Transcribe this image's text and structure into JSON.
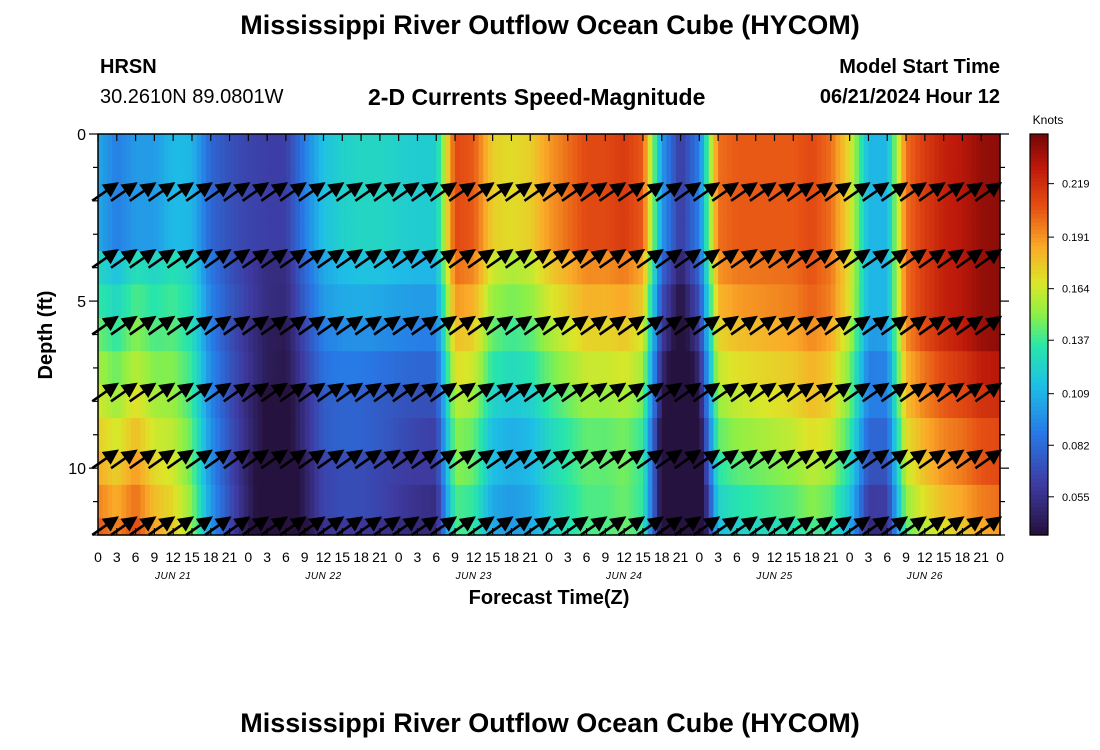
{
  "title": "Mississippi River Outflow Ocean Cube (HYCOM)",
  "footer_title": "Mississippi River Outflow Ocean Cube (HYCOM)",
  "station": {
    "id": "HRSN",
    "coords": "30.2610N  89.0801W"
  },
  "subtitle": "2-D Currents Speed-Magnitude",
  "model_start": {
    "label": "Model Start Time",
    "value": "06/21/2024 Hour 12"
  },
  "chart_data": {
    "type": "heatmap",
    "title": "2-D Currents Speed-Magnitude",
    "xlabel": "Forecast Time(Z)",
    "ylabel": "Depth (ft)",
    "colorbar_label": "Knots",
    "colorbar_ticks": [
      0.219,
      0.191,
      0.164,
      0.137,
      0.109,
      0.082,
      0.055
    ],
    "color_range": [
      0.035,
      0.245
    ],
    "ylim": [
      0,
      12
    ],
    "y_ticks": [
      0,
      5,
      10
    ],
    "x_range_hours": [
      0,
      144
    ],
    "x_tick_labels": [
      "0",
      "3",
      "6",
      "9",
      "12",
      "15",
      "18",
      "21",
      "0",
      "3",
      "6",
      "9",
      "12",
      "15",
      "18",
      "21",
      "0",
      "3",
      "6",
      "9",
      "12",
      "15",
      "18",
      "21",
      "0",
      "3",
      "6",
      "9",
      "12",
      "15",
      "18",
      "21",
      "0",
      "3",
      "6",
      "9",
      "12",
      "15",
      "18",
      "21",
      "0",
      "3",
      "6",
      "9",
      "12",
      "15",
      "18",
      "21",
      "0"
    ],
    "date_labels": [
      "JUN 21",
      "JUN 22",
      "JUN 23",
      "JUN 24",
      "JUN 25",
      "JUN 26"
    ],
    "depth_layers_ft": [
      0.5,
      2,
      3,
      4,
      5,
      6,
      7,
      8,
      9,
      10,
      11,
      12
    ],
    "speed_profile_knots": [
      [
        0,
        0.105
      ],
      [
        3,
        0.09
      ],
      [
        6,
        0.1
      ],
      [
        9,
        0.1
      ],
      [
        12,
        0.112
      ],
      [
        15,
        0.11
      ],
      [
        18,
        0.08
      ],
      [
        21,
        0.07
      ],
      [
        24,
        0.065
      ],
      [
        27,
        0.062
      ],
      [
        30,
        0.062
      ],
      [
        33,
        0.09
      ],
      [
        36,
        0.115
      ],
      [
        39,
        0.122
      ],
      [
        42,
        0.125
      ],
      [
        45,
        0.125
      ],
      [
        48,
        0.122
      ],
      [
        51,
        0.12
      ],
      [
        54,
        0.12
      ],
      [
        57,
        0.21
      ],
      [
        60,
        0.205
      ],
      [
        63,
        0.175
      ],
      [
        66,
        0.17
      ],
      [
        69,
        0.175
      ],
      [
        72,
        0.19
      ],
      [
        75,
        0.2
      ],
      [
        78,
        0.21
      ],
      [
        81,
        0.21
      ],
      [
        84,
        0.215
      ],
      [
        87,
        0.205
      ],
      [
        90,
        0.1
      ],
      [
        93,
        0.06
      ],
      [
        96,
        0.09
      ],
      [
        99,
        0.2
      ],
      [
        102,
        0.205
      ],
      [
        105,
        0.205
      ],
      [
        108,
        0.205
      ],
      [
        111,
        0.205
      ],
      [
        114,
        0.21
      ],
      [
        117,
        0.2
      ],
      [
        120,
        0.17
      ],
      [
        123,
        0.11
      ],
      [
        126,
        0.11
      ],
      [
        129,
        0.2
      ],
      [
        132,
        0.215
      ],
      [
        135,
        0.225
      ],
      [
        138,
        0.23
      ],
      [
        141,
        0.238
      ],
      [
        144,
        0.24
      ]
    ],
    "depth_modifier_rows": [
      [
        [
          0,
          0.0
        ],
        [
          27,
          0.0
        ],
        [
          57,
          0.0
        ],
        [
          90,
          0.0
        ],
        [
          96,
          0.0
        ],
        [
          123,
          0.0
        ],
        [
          144,
          0.0
        ]
      ],
      [
        [
          0,
          0.0
        ],
        [
          27,
          0.0
        ],
        [
          57,
          0.0
        ],
        [
          90,
          0.0
        ],
        [
          96,
          0.0
        ],
        [
          123,
          0.0
        ],
        [
          144,
          0.0
        ]
      ],
      [
        [
          0,
          0.0
        ],
        [
          27,
          0.0
        ],
        [
          57,
          0.0
        ],
        [
          90,
          0.0
        ],
        [
          96,
          0.0
        ],
        [
          123,
          0.0
        ],
        [
          144,
          0.0
        ]
      ],
      [
        [
          0,
          0.02
        ],
        [
          6,
          0.03
        ],
        [
          27,
          -0.01
        ],
        [
          57,
          -0.01
        ],
        [
          90,
          -0.02
        ],
        [
          96,
          -0.01
        ],
        [
          123,
          0.0
        ],
        [
          144,
          0.0
        ]
      ],
      [
        [
          0,
          0.03
        ],
        [
          6,
          0.04
        ],
        [
          27,
          -0.01
        ],
        [
          45,
          -0.02
        ],
        [
          57,
          -0.02
        ],
        [
          90,
          -0.03
        ],
        [
          96,
          -0.02
        ],
        [
          123,
          0.0
        ],
        [
          144,
          0.0
        ]
      ],
      [
        [
          0,
          0.04
        ],
        [
          6,
          0.05
        ],
        [
          27,
          -0.02
        ],
        [
          45,
          -0.03
        ],
        [
          57,
          -0.03
        ],
        [
          90,
          -0.04
        ],
        [
          96,
          -0.03
        ],
        [
          123,
          -0.01
        ],
        [
          144,
          0.0
        ]
      ],
      [
        [
          0,
          0.05
        ],
        [
          6,
          0.06
        ],
        [
          27,
          -0.02
        ],
        [
          45,
          -0.04
        ],
        [
          57,
          -0.04
        ],
        [
          90,
          -0.05
        ],
        [
          96,
          -0.04
        ],
        [
          123,
          -0.02
        ],
        [
          144,
          -0.01
        ]
      ],
      [
        [
          0,
          0.06
        ],
        [
          6,
          0.07
        ],
        [
          27,
          -0.03
        ],
        [
          45,
          -0.05
        ],
        [
          57,
          -0.05
        ],
        [
          90,
          -0.06
        ],
        [
          96,
          -0.05
        ],
        [
          123,
          -0.02
        ],
        [
          144,
          -0.02
        ]
      ],
      [
        [
          0,
          0.07
        ],
        [
          6,
          0.08
        ],
        [
          27,
          -0.03
        ],
        [
          45,
          -0.05
        ],
        [
          57,
          -0.06
        ],
        [
          90,
          -0.07
        ],
        [
          96,
          -0.06
        ],
        [
          123,
          -0.03
        ],
        [
          144,
          -0.03
        ]
      ],
      [
        [
          0,
          0.08
        ],
        [
          6,
          0.09
        ],
        [
          27,
          -0.04
        ],
        [
          45,
          -0.06
        ],
        [
          57,
          -0.06
        ],
        [
          90,
          -0.07
        ],
        [
          96,
          -0.07
        ],
        [
          123,
          -0.04
        ],
        [
          144,
          -0.03
        ]
      ],
      [
        [
          0,
          0.09
        ],
        [
          6,
          0.1
        ],
        [
          27,
          -0.04
        ],
        [
          45,
          -0.06
        ],
        [
          57,
          -0.07
        ],
        [
          90,
          -0.07
        ],
        [
          96,
          -0.08
        ],
        [
          123,
          -0.05
        ],
        [
          144,
          -0.04
        ]
      ],
      [
        [
          0,
          0.1
        ],
        [
          6,
          0.11
        ],
        [
          27,
          -0.05
        ],
        [
          45,
          -0.07
        ],
        [
          57,
          -0.07
        ],
        [
          90,
          -0.07
        ],
        [
          96,
          -0.09
        ],
        [
          123,
          -0.06
        ],
        [
          144,
          -0.05
        ]
      ]
    ],
    "arrow_depths_ft": [
      2,
      4,
      6,
      8,
      10,
      12
    ],
    "arrow_times_hours": [
      3,
      6,
      9,
      12,
      15,
      18,
      21,
      24,
      27,
      30,
      33,
      36,
      39,
      42,
      45,
      48,
      51,
      54,
      57,
      60,
      63,
      66,
      69,
      72,
      75,
      78,
      81,
      84,
      87,
      90,
      93,
      96,
      99,
      102,
      105,
      108,
      111,
      114,
      117,
      120,
      123,
      126,
      129,
      132,
      135,
      138,
      141,
      144
    ],
    "arrow_direction_deg": 35,
    "arrow_length_knots": 0.11
  }
}
